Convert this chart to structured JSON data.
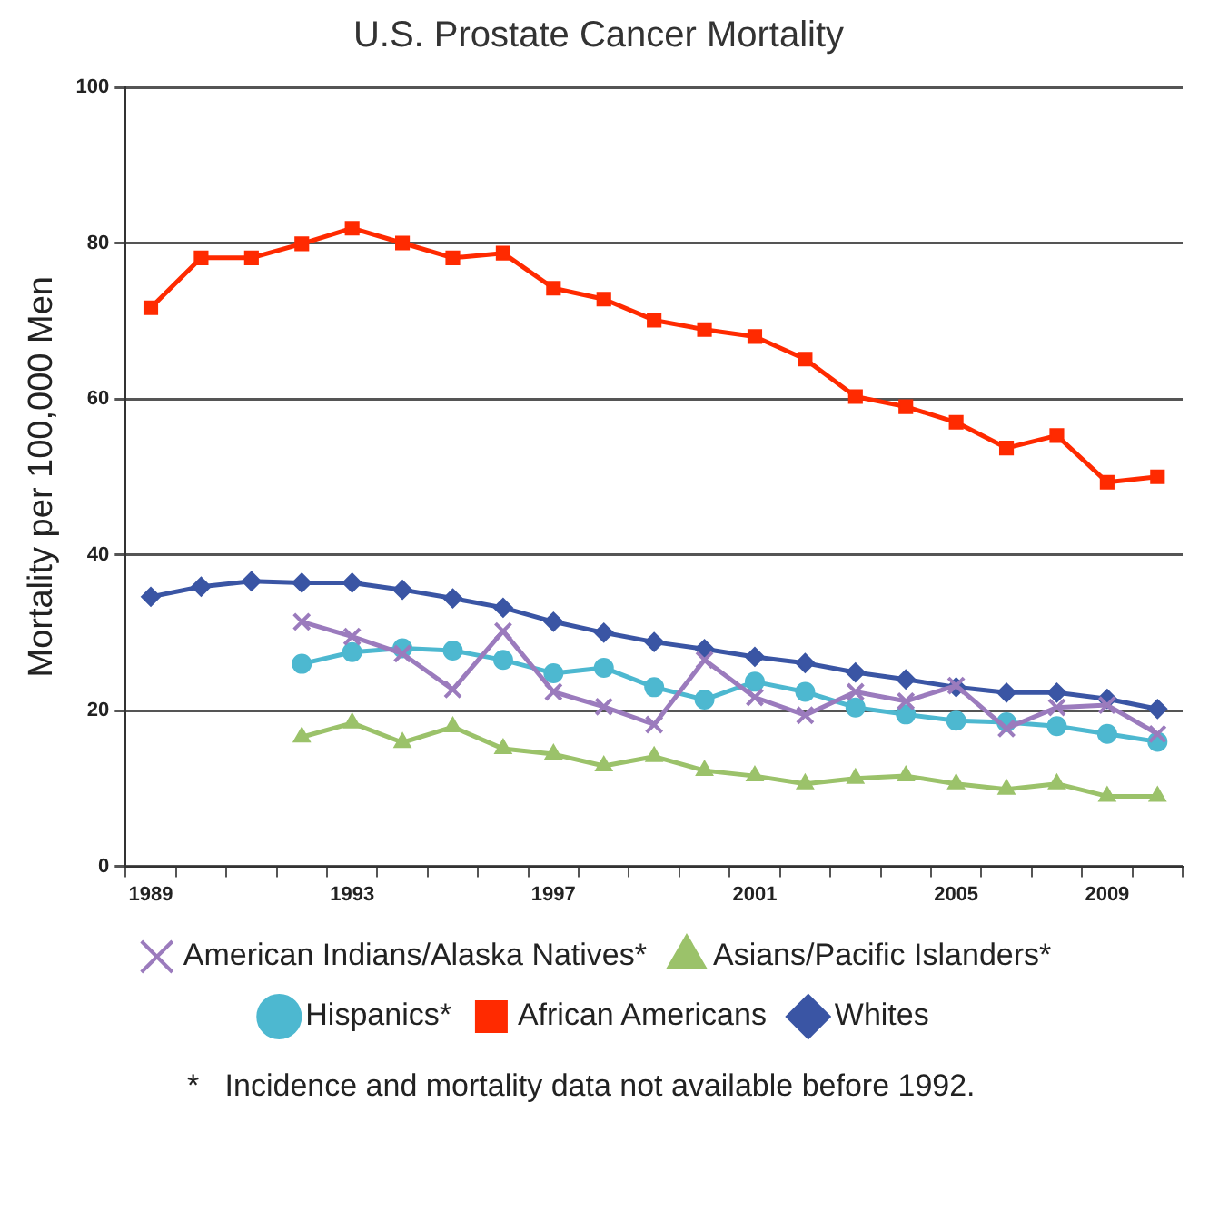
{
  "chart_data": {
    "type": "line",
    "title": "U.S. Prostate Cancer Mortality",
    "ylabel": "Mortality per 100,000 Men",
    "categories": [
      "1989",
      null,
      null,
      null,
      "1993",
      null,
      null,
      null,
      "1997",
      null,
      null,
      null,
      "2001",
      null,
      null,
      null,
      "2005",
      null,
      null,
      "2009",
      null
    ],
    "series": [
      {
        "name": "Whites",
        "color": "#3a55a4",
        "marker": "diamond",
        "values": [
          34.6,
          35.9,
          36.6,
          36.4,
          36.4,
          35.5,
          34.4,
          33.2,
          31.4,
          30,
          28.8,
          27.9,
          26.9,
          26.1,
          24.9,
          24,
          23,
          22.3,
          22.3,
          21.5,
          20.2
        ]
      },
      {
        "name": "African Americans",
        "color": "#ff2a00",
        "marker": "square",
        "values": [
          71.7,
          78.1,
          78.1,
          79.9,
          81.9,
          80,
          78.1,
          78.7,
          74.2,
          72.8,
          70.1,
          68.9,
          68,
          65.1,
          60.3,
          59,
          57,
          53.7,
          55.3,
          49.3,
          50
        ]
      },
      {
        "name": "Hispanics*",
        "color": "#4db8d0",
        "marker": "circle",
        "values": [
          null,
          null,
          null,
          26,
          27.5,
          28,
          27.7,
          26.5,
          24.8,
          25.5,
          23,
          21.4,
          23.7,
          22.4,
          20.4,
          19.5,
          18.7,
          18.5,
          18,
          17,
          16
        ]
      },
      {
        "name": "Asians/Pacific Islanders*",
        "color": "#9bc26a",
        "marker": "triangle",
        "values": [
          null,
          null,
          null,
          16.6,
          18.4,
          15.9,
          17.9,
          15.1,
          14.4,
          12.9,
          14.1,
          12.3,
          11.6,
          10.6,
          11.3,
          11.6,
          10.6,
          9.9,
          10.6,
          9,
          9
        ]
      },
      {
        "name": "American Indians/Alaska Natives*",
        "color": "#9b7bbd",
        "marker": "cross",
        "values": [
          null,
          null,
          null,
          31.4,
          29.5,
          27.3,
          22.7,
          30.2,
          22.4,
          20.5,
          18.2,
          26.5,
          21.7,
          19.4,
          22.4,
          21.2,
          23.2,
          17.7,
          20.4,
          20.7,
          17
        ]
      }
    ],
    "ylim": [
      0,
      100
    ],
    "yticks": [
      0,
      20,
      40,
      60,
      80,
      100
    ],
    "grid": "y",
    "legend": "bottom",
    "line_style": "solid",
    "annotations": [
      "*   Incidence and mortality data not available before 1992."
    ]
  }
}
